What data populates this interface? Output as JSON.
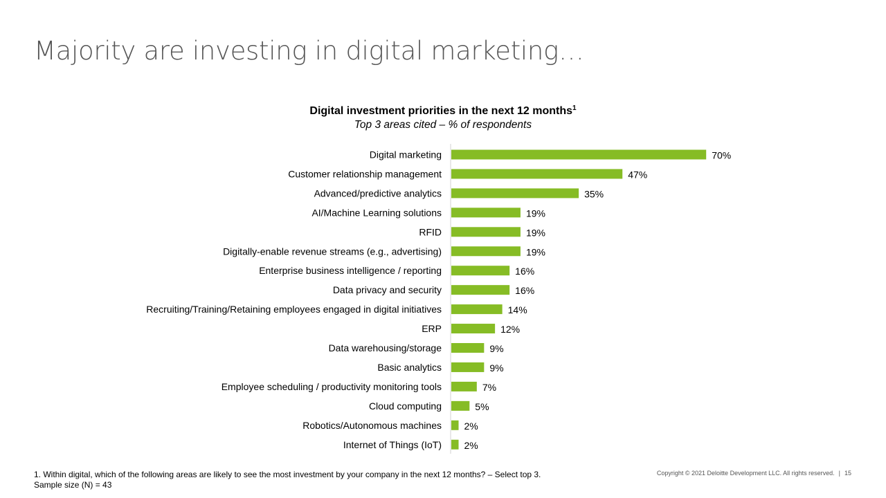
{
  "slide": {
    "title": "Majority are investing in digital marketing…"
  },
  "chart_data": {
    "type": "bar",
    "orientation": "horizontal",
    "title": "Digital investment priorities in the next 12 months",
    "title_superscript": "1",
    "subtitle": "Top 3 areas cited – % of respondents",
    "categories": [
      "Digital marketing",
      "Customer relationship management",
      "Advanced/predictive analytics",
      "AI/Machine Learning solutions",
      "RFID",
      "Digitally-enable revenue streams (e.g., advertising)",
      "Enterprise business intelligence / reporting",
      "Data privacy and security",
      "Recruiting/Training/Retaining employees engaged in digital initiatives",
      "ERP",
      "Data warehousing/storage",
      "Basic analytics",
      "Employee scheduling / productivity monitoring tools",
      "Cloud computing",
      "Robotics/Autonomous machines",
      "Internet of Things (IoT)"
    ],
    "values": [
      70,
      47,
      35,
      19,
      19,
      19,
      16,
      16,
      14,
      12,
      9,
      9,
      7,
      5,
      2,
      2
    ],
    "value_suffix": "%",
    "xlim": [
      0,
      100
    ],
    "bar_color": "#86bc25",
    "axis_color": "#d0d0d0",
    "grid": false,
    "legend": false
  },
  "footer": {
    "footnote": "1. Within digital, which of the following areas are likely to see the most investment by your company in the next 12 months? – Select top 3.",
    "sample_size": "Sample size (N) = 43",
    "copyright": "Copyright © 2021 Deloitte Development LLC. All rights reserved.",
    "separator": "|",
    "page_number": "15"
  }
}
